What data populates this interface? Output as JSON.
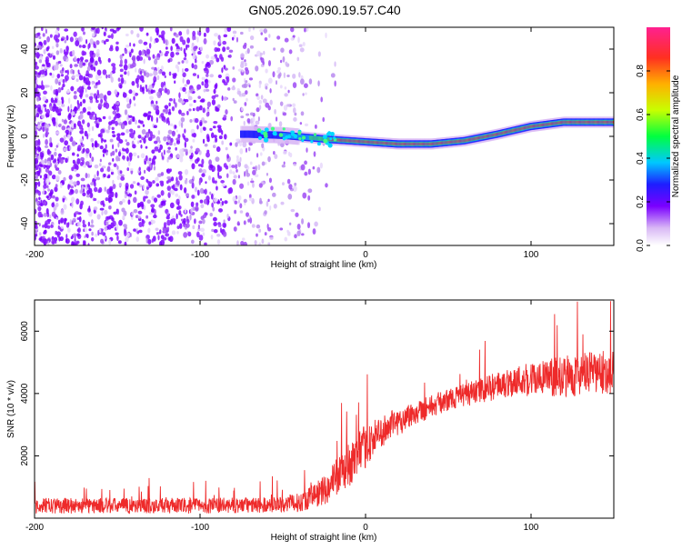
{
  "title": "GN05.2026.090.19.57.C40",
  "chart_data": [
    {
      "type": "heatmap",
      "xlabel": "Height of straight line (km)",
      "ylabel": "Frequency (Hz)",
      "xlim": [
        -200,
        150
      ],
      "ylim": [
        -50,
        50
      ],
      "xticks": [
        -200,
        -100,
        0,
        100
      ],
      "yticks": [
        -40,
        -20,
        0,
        20,
        40
      ],
      "colorbar": {
        "label": "Normalized spectral amplitude",
        "range": [
          0,
          1
        ],
        "ticks": [
          "0.0",
          "0.2",
          "0.4",
          "0.6",
          "0.8"
        ]
      },
      "ridge": [
        {
          "x": -70,
          "y": 1.0
        },
        {
          "x": -50,
          "y": 0.5
        },
        {
          "x": -20,
          "y": -1.5
        },
        {
          "x": 0,
          "y": -2.5
        },
        {
          "x": 20,
          "y": -3.5
        },
        {
          "x": 40,
          "y": -3.5
        },
        {
          "x": 60,
          "y": -2.0
        },
        {
          "x": 80,
          "y": 1.0
        },
        {
          "x": 100,
          "y": 4.5
        },
        {
          "x": 120,
          "y": 6.5
        },
        {
          "x": 150,
          "y": 6.5
        }
      ]
    },
    {
      "type": "line",
      "xlabel": "Height of straight line (km)",
      "ylabel": "SNR (10 * v/v)",
      "xlim": [
        -200,
        150
      ],
      "ylim": [
        0,
        7000
      ],
      "xticks": [
        -200,
        -100,
        0,
        100
      ],
      "yticks": [
        2000,
        4000,
        6000
      ],
      "envelope": [
        {
          "x": -200,
          "mean": 400,
          "spread": 250
        },
        {
          "x": -100,
          "mean": 400,
          "spread": 250
        },
        {
          "x": -60,
          "mean": 420,
          "spread": 250
        },
        {
          "x": -40,
          "mean": 500,
          "spread": 300
        },
        {
          "x": -25,
          "mean": 900,
          "spread": 500
        },
        {
          "x": -10,
          "mean": 1700,
          "spread": 700
        },
        {
          "x": 0,
          "mean": 2300,
          "spread": 700
        },
        {
          "x": 10,
          "mean": 2800,
          "spread": 500
        },
        {
          "x": 30,
          "mean": 3400,
          "spread": 400
        },
        {
          "x": 50,
          "mean": 3800,
          "spread": 350
        },
        {
          "x": 70,
          "mean": 4100,
          "spread": 400
        },
        {
          "x": 90,
          "mean": 4400,
          "spread": 500
        },
        {
          "x": 110,
          "mean": 4500,
          "spread": 600
        },
        {
          "x": 130,
          "mean": 4600,
          "spread": 700
        },
        {
          "x": 150,
          "mean": 4700,
          "spread": 700
        }
      ],
      "peak": {
        "x": 128,
        "y": 6950
      }
    }
  ]
}
